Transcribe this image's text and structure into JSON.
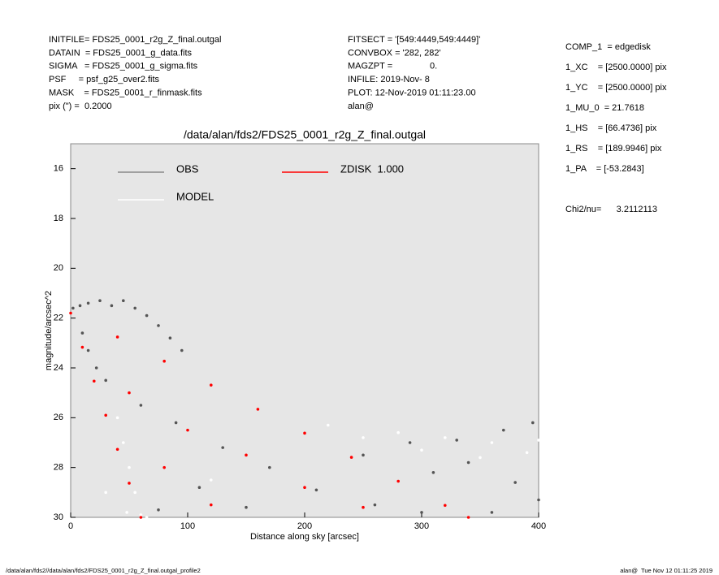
{
  "header": {
    "left": [
      "INITFILE= FDS25_0001_r2g_Z_final.outgal",
      "DATAIN  = FDS25_0001_g_data.fits",
      "SIGMA   = FDS25_0001_g_sigma.fits",
      "PSF     = psf_g25_over2.fits",
      "MASK    = FDS25_0001_r_finmask.fits",
      "pix (\") =  0.2000"
    ],
    "middle": [
      "FITSECT = '[549:4449,549:4449]'",
      "CONVBOX = '282, 282'",
      "MAGZPT =               0.",
      "INFILE: 2019-Nov- 8",
      "PLOT: 12-Nov-2019 01:11:23.00",
      "alan@"
    ],
    "right": [
      "COMP_1  = edgedisk",
      "1_XC    = [2500.0000] pix",
      "1_YC    = [2500.0000] pix",
      "1_MU_0  = 21.7618",
      "1_HS    = [66.4736] pix",
      "1_RS    = [189.9946] pix",
      "1_PA    = [-53.2843]",
      "Chi2/nu=      3.2112113"
    ]
  },
  "footer": {
    "left": "/data/alan/fds2//data/alan/fds2/FDS25_0001_r2g_Z_final.outgal_profile2",
    "right": "alan@  Tue Nov 12 01:11:25 2019"
  },
  "chart_data": {
    "type": "scatter",
    "title": "/data/alan/fds2/FDS25_0001_r2g_Z_final.outgal",
    "xlabel": "Distance along sky [arcsec]",
    "ylabel": "magnitude/arcsec^2",
    "xlim": [
      0,
      400
    ],
    "ylim": [
      30,
      15
    ],
    "xticks": [
      0,
      100,
      200,
      300,
      400
    ],
    "yticks": [
      16,
      18,
      20,
      22,
      24,
      26,
      28,
      30
    ],
    "grid": false,
    "series": [
      {
        "name": "OBS",
        "color": "#555555",
        "x": [
          2,
          8,
          15,
          25,
          35,
          45,
          55,
          65,
          75,
          85,
          95,
          10,
          15,
          22,
          30,
          60,
          90,
          130,
          170,
          210,
          260,
          300,
          250,
          290,
          330,
          370,
          395,
          340,
          380,
          400,
          360,
          310,
          110,
          150,
          75
        ],
        "values": [
          21.6,
          21.5,
          21.4,
          21.3,
          21.5,
          21.3,
          21.6,
          21.9,
          22.3,
          22.8,
          23.3,
          22.6,
          23.3,
          24.0,
          24.5,
          25.5,
          26.2,
          27.2,
          28.0,
          28.9,
          29.5,
          29.8,
          27.5,
          27.0,
          26.9,
          26.5,
          26.2,
          27.8,
          28.6,
          29.3,
          29.8,
          28.2,
          28.8,
          29.6,
          29.7
        ]
      },
      {
        "name": "MODEL",
        "color": "#ffffff",
        "x": [
          40,
          45,
          50,
          55,
          60,
          65,
          120,
          280,
          320,
          360,
          400,
          300,
          350,
          390,
          250,
          220,
          30,
          48
        ],
        "values": [
          26,
          27,
          28,
          29,
          29.9,
          30,
          28.5,
          26.6,
          26.8,
          27.0,
          26.9,
          27.3,
          27.6,
          27.4,
          26.8,
          26.3,
          29.0,
          29.8
        ]
      },
      {
        "name": "ZDISK  1.000",
        "color": "#ff0000",
        "x": [
          0,
          40,
          80,
          120,
          160,
          200,
          240,
          280,
          320,
          340,
          10,
          20,
          30,
          40,
          50,
          60,
          50,
          100,
          150,
          80,
          200,
          120,
          250
        ],
        "values": [
          21.8,
          22.76,
          23.73,
          24.69,
          25.66,
          26.62,
          27.59,
          28.55,
          29.52,
          30.0,
          23.17,
          24.53,
          25.9,
          27.27,
          28.63,
          30.0,
          25.0,
          26.5,
          27.5,
          28.0,
          28.8,
          29.5,
          29.6
        ]
      }
    ]
  }
}
